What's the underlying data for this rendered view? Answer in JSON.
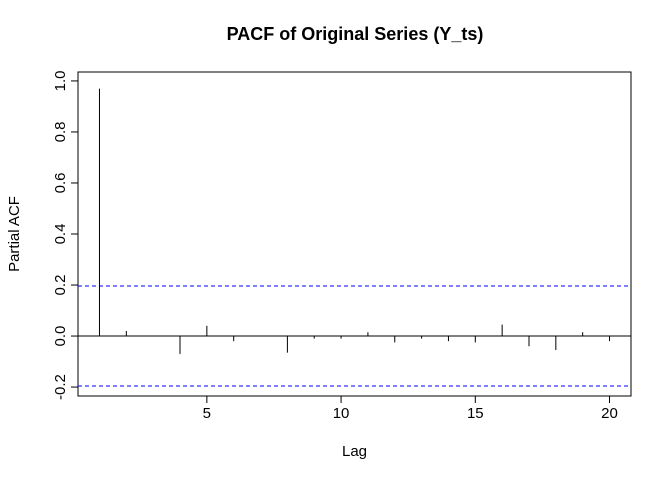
{
  "chart_data": {
    "type": "bar",
    "title": "PACF of Original Series (Y_ts)",
    "xlabel": "Lag",
    "ylabel": "Partial ACF",
    "xlim": [
      0.2,
      20.8
    ],
    "ylim": [
      -0.235,
      1.035
    ],
    "x_ticks": [
      5,
      10,
      15,
      20
    ],
    "x_tick_labels": [
      "5",
      "10",
      "15",
      "20"
    ],
    "y_ticks": [
      -0.2,
      0.0,
      0.2,
      0.4,
      0.6,
      0.8,
      1.0
    ],
    "y_tick_labels": [
      "-0.2",
      "0.0",
      "0.2",
      "0.4",
      "0.6",
      "0.8",
      "1.0"
    ],
    "lags": [
      1,
      2,
      3,
      4,
      5,
      6,
      7,
      8,
      9,
      10,
      11,
      12,
      13,
      14,
      15,
      16,
      17,
      18,
      19,
      20
    ],
    "values": [
      0.97,
      0.02,
      0.0,
      -0.07,
      0.04,
      -0.02,
      0.0,
      -0.065,
      -0.01,
      -0.01,
      0.015,
      -0.025,
      -0.01,
      -0.02,
      -0.025,
      0.045,
      -0.04,
      -0.055,
      0.015,
      -0.02
    ],
    "confidence_bound": 0.196,
    "confidence_line_color": "#0000ff",
    "grid": false,
    "legend": "none"
  }
}
